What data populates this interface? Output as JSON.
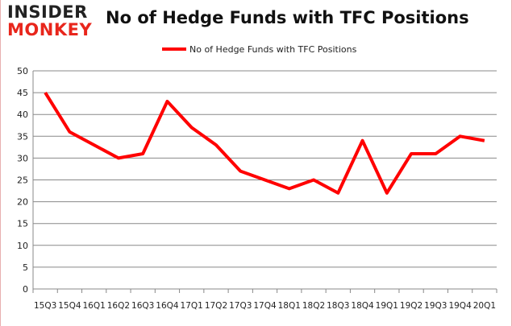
{
  "logo": {
    "line1": "INSIDER",
    "line2": "MONKEY"
  },
  "chart_data": {
    "type": "line",
    "title": "No of Hedge Funds with TFC Positions",
    "categories": [
      "15Q3",
      "15Q4",
      "16Q1",
      "16Q2",
      "16Q3",
      "16Q4",
      "17Q1",
      "17Q2",
      "17Q3",
      "17Q4",
      "18Q1",
      "18Q2",
      "18Q3",
      "18Q4",
      "19Q1",
      "19Q2",
      "19Q3",
      "19Q4",
      "20Q1"
    ],
    "series": [
      {
        "name": "No of Hedge Funds with TFC Positions",
        "color": "#ff0000",
        "values": [
          45,
          36,
          33,
          30,
          31,
          43,
          37,
          33,
          27,
          25,
          23,
          25,
          22,
          34,
          22,
          31,
          31,
          35,
          34
        ]
      }
    ],
    "ylim": [
      0,
      50
    ],
    "yticks": [
      0,
      5,
      10,
      15,
      20,
      25,
      30,
      35,
      40,
      45,
      50
    ],
    "grid": true,
    "legend": "top-center",
    "xlabel": "",
    "ylabel": ""
  }
}
